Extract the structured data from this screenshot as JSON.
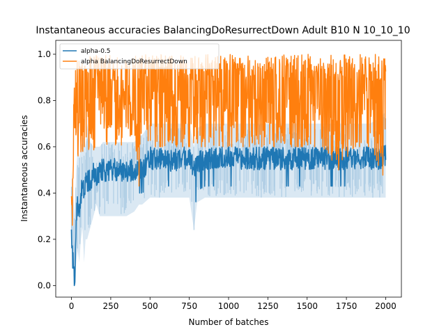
{
  "chart_data": {
    "type": "line",
    "title": "Instantaneous accuracies BalancingDoResurrectDown Adult B10 N 10_10_10",
    "xlabel": "Number of batches",
    "ylabel": "Instantaneous accuracies",
    "xlim": [
      -100,
      2100
    ],
    "ylim": [
      -0.05,
      1.06
    ],
    "xticks": [
      0,
      250,
      500,
      750,
      1000,
      1250,
      1500,
      1750,
      2000
    ],
    "yticks": [
      0.0,
      0.2,
      0.4,
      0.6,
      0.8,
      1.0
    ],
    "xtick_labels": [
      "0",
      "250",
      "500",
      "750",
      "1000",
      "1250",
      "1500",
      "1750",
      "2000"
    ],
    "ytick_labels": [
      "0.0",
      "0.2",
      "0.4",
      "0.6",
      "0.8",
      "1.0"
    ],
    "grid": false,
    "legend": {
      "position": "top-left"
    },
    "series": [
      {
        "name": "alpha-0.5",
        "color": "#1f77b4",
        "x": [
          0,
          10,
          20,
          30,
          40,
          50,
          60,
          70,
          80,
          90,
          100,
          120,
          140,
          160,
          180,
          200,
          250,
          300,
          350,
          400,
          430,
          450,
          500,
          550,
          600,
          650,
          700,
          750,
          780,
          800,
          850,
          900,
          1000,
          1100,
          1200,
          1300,
          1400,
          1500,
          1600,
          1700,
          1800,
          1900,
          1950,
          2000
        ],
        "y": [
          0.2,
          0.1,
          0.0,
          0.3,
          0.35,
          0.3,
          0.4,
          0.42,
          0.4,
          0.44,
          0.45,
          0.45,
          0.48,
          0.47,
          0.5,
          0.5,
          0.5,
          0.5,
          0.5,
          0.5,
          0.52,
          0.5,
          0.55,
          0.55,
          0.55,
          0.54,
          0.55,
          0.55,
          0.5,
          0.53,
          0.55,
          0.55,
          0.55,
          0.55,
          0.55,
          0.55,
          0.55,
          0.55,
          0.55,
          0.55,
          0.55,
          0.55,
          0.55,
          0.56
        ],
        "min": [
          0.2,
          0.1,
          0.0,
          0.1,
          0.15,
          0.1,
          0.2,
          0.25,
          0.1,
          0.2,
          0.2,
          0.25,
          0.3,
          0.35,
          0.3,
          0.3,
          0.3,
          0.3,
          0.3,
          0.32,
          0.35,
          0.35,
          0.38,
          0.38,
          0.38,
          0.38,
          0.38,
          0.38,
          0.24,
          0.36,
          0.38,
          0.38,
          0.38,
          0.38,
          0.38,
          0.38,
          0.38,
          0.38,
          0.38,
          0.38,
          0.38,
          0.38,
          0.38,
          0.38
        ],
        "max": [
          0.5,
          0.4,
          0.3,
          0.5,
          0.6,
          0.55,
          0.6,
          0.62,
          0.65,
          0.6,
          0.7,
          0.62,
          0.6,
          0.6,
          0.6,
          0.62,
          0.62,
          0.62,
          0.62,
          0.62,
          0.65,
          0.65,
          0.7,
          0.7,
          0.7,
          0.7,
          0.7,
          0.7,
          0.6,
          0.68,
          0.7,
          0.7,
          0.7,
          0.7,
          0.7,
          0.7,
          0.7,
          0.7,
          0.7,
          0.7,
          0.7,
          0.7,
          0.72,
          0.75
        ]
      },
      {
        "name": "alpha BalancingDoResurrectDown",
        "color": "#ff7f0e",
        "x": [
          0,
          10,
          20,
          30,
          40,
          50,
          60,
          80,
          100,
          120,
          150,
          200,
          250,
          300,
          350,
          400,
          430,
          450,
          500,
          550,
          600,
          700,
          800,
          900,
          1000,
          1100,
          1200,
          1300,
          1400,
          1500,
          1600,
          1700,
          1800,
          1900,
          2000
        ],
        "y": [
          0.2,
          0.7,
          0.8,
          0.7,
          0.8,
          0.85,
          0.8,
          0.85,
          0.8,
          0.85,
          0.88,
          0.85,
          0.85,
          0.88,
          0.85,
          0.85,
          0.8,
          0.85,
          0.85,
          0.85,
          0.85,
          0.85,
          0.85,
          0.85,
          0.85,
          0.85,
          0.85,
          0.85,
          0.85,
          0.85,
          0.85,
          0.85,
          0.85,
          0.85,
          0.8
        ],
        "min": [
          0.2,
          0.3,
          0.45,
          0.55,
          0.55,
          0.6,
          0.55,
          0.6,
          0.6,
          0.55,
          0.6,
          0.6,
          0.62,
          0.6,
          0.62,
          0.62,
          0.38,
          0.6,
          0.6,
          0.6,
          0.6,
          0.6,
          0.6,
          0.6,
          0.6,
          0.6,
          0.6,
          0.6,
          0.6,
          0.6,
          0.6,
          0.5,
          0.6,
          0.6,
          0.45
        ],
        "max": [
          0.4,
          0.8,
          0.9,
          0.95,
          1.0,
          1.0,
          1.0,
          1.0,
          1.0,
          1.0,
          1.0,
          1.0,
          1.0,
          1.0,
          1.0,
          1.0,
          1.0,
          1.0,
          1.0,
          1.0,
          1.0,
          1.0,
          1.0,
          1.0,
          1.0,
          1.0,
          1.0,
          1.0,
          1.0,
          1.0,
          1.0,
          1.0,
          1.0,
          1.0,
          1.0
        ]
      }
    ],
    "band_color": "#aecde4"
  }
}
